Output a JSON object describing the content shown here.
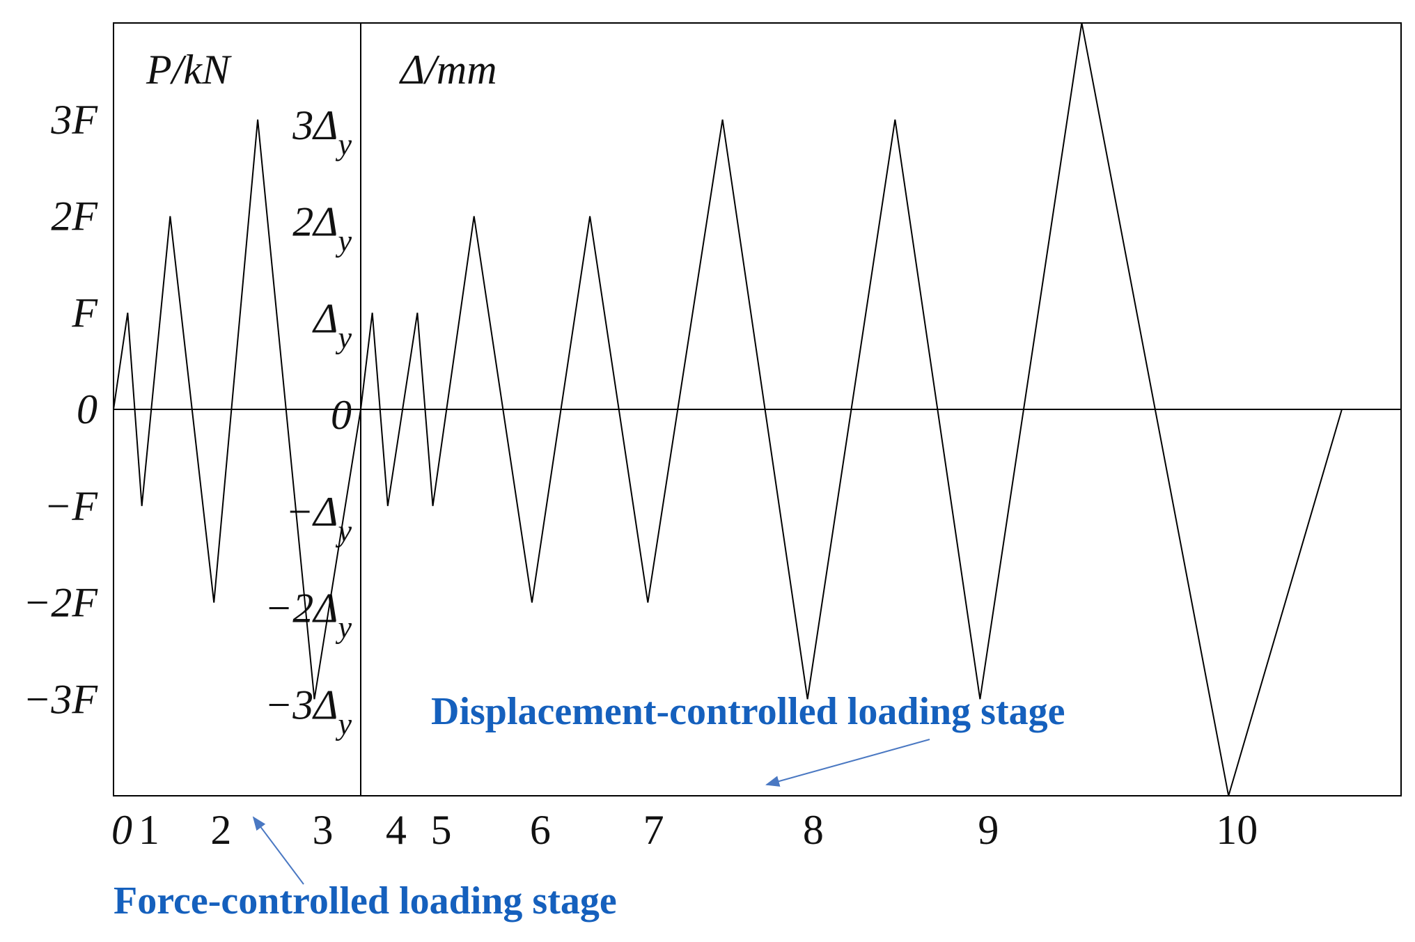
{
  "chart_data": {
    "type": "line",
    "y_label": "P/kN",
    "y2_label": "Δ/mm",
    "annotations": [
      "Displacement-controlled loading stage",
      "Force-controlled loading stage"
    ],
    "x": [
      0,
      1.1,
      2.2,
      4.4,
      7.8,
      11.2,
      15.6,
      19.2,
      20.1,
      21.3,
      23.6,
      24.8,
      28.0,
      32.5,
      37.0,
      41.5,
      47.3,
      53.9,
      60.7,
      67.3,
      75.2,
      86.6,
      95.4
    ],
    "series": [
      {
        "color": "#000000",
        "values": [
          0,
          1,
          -1,
          2,
          -2,
          3,
          -3,
          0,
          1,
          -1,
          1,
          -1,
          2,
          -2,
          2,
          -2,
          3,
          -3,
          3,
          -3,
          4,
          -4,
          0
        ]
      }
    ],
    "divider_x": 19.2,
    "xlim": [
      0,
      100
    ],
    "xticks": [
      {
        "value": 0,
        "label": "0"
      },
      {
        "value": 2.1,
        "label": "1"
      },
      {
        "value": 7.7,
        "label": "2"
      },
      {
        "value": 15.6,
        "label": "3"
      },
      {
        "value": 21.3,
        "label": "4"
      },
      {
        "value": 24.8,
        "label": "5"
      },
      {
        "value": 32.5,
        "label": "6"
      },
      {
        "value": 41.3,
        "label": "7"
      },
      {
        "value": 53.7,
        "label": "8"
      },
      {
        "value": 67.3,
        "label": "9"
      },
      {
        "value": 86.6,
        "label": "10"
      }
    ],
    "ylim": [
      -4,
      4
    ],
    "yticks": [
      {
        "value": 3,
        "label": "3F"
      },
      {
        "value": 2,
        "label": "2F"
      },
      {
        "value": 1,
        "label": "F"
      },
      {
        "value": 0,
        "label": "0"
      },
      {
        "value": -1,
        "label": "−F"
      },
      {
        "value": -2,
        "label": "−2F"
      },
      {
        "value": -3,
        "label": "−3F"
      }
    ],
    "y2ticks": [
      {
        "value": 3,
        "label": "3Δ",
        "subscript": "y"
      },
      {
        "value": 2,
        "label": "2Δ",
        "subscript": "y"
      },
      {
        "value": 1,
        "label": "Δ",
        "subscript": "y"
      },
      {
        "value": 0,
        "label": "0"
      },
      {
        "value": -1,
        "label": "−Δ",
        "subscript": "y"
      },
      {
        "value": -2,
        "label": "−2Δ",
        "subscript": "y"
      },
      {
        "value": -3,
        "label": "−3Δ",
        "subscript": "y"
      }
    ]
  }
}
